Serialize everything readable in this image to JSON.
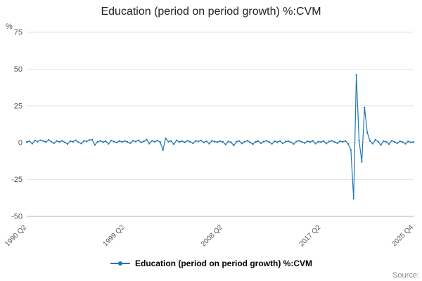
{
  "page": {
    "title": "Education (period on period growth) %:CVM",
    "y_unit_label": "%",
    "source_label": "Source:"
  },
  "legend": {
    "label": "Education (period on period growth) %:CVM",
    "line_color": "#1f77b4"
  },
  "chart_data": {
    "type": "line",
    "title": "Education (period on period growth) %:CVM",
    "xlabel": "",
    "ylabel": "%",
    "ylim": [
      -50,
      75
    ],
    "y_ticks": [
      75,
      50,
      25,
      0,
      -25,
      -50
    ],
    "grid": "horizontal",
    "legend_position": "bottom",
    "frequency": "quarterly",
    "start": "1990 Q2",
    "end": "2025 Q4",
    "x_tick_labels": [
      "1990 Q2",
      "1999 Q2",
      "2008 Q2",
      "2017 Q2",
      "2025 Q4"
    ],
    "x_tick_indices": [
      0,
      36,
      72,
      108,
      142
    ],
    "series": [
      {
        "name": "Education (period on period growth) %:CVM",
        "color": "#1f77b4",
        "values": [
          0.4,
          1.1,
          -0.6,
          1.5,
          0.8,
          1.7,
          1.2,
          0.5,
          1.9,
          0.8,
          -0.4,
          1.2,
          0.6,
          1.4,
          0.2,
          -0.8,
          1.1,
          0.7,
          1.6,
          0.3,
          -0.5,
          1.2,
          0.9,
          1.8,
          2.1,
          -1.5,
          0.6,
          1.3,
          0.4,
          1.0,
          -0.7,
          1.5,
          0.8,
          0.2,
          1.1,
          0.6,
          1.2,
          0.5,
          -0.3,
          1.4,
          0.8,
          1.6,
          0.2,
          1.0,
          2.2,
          -0.6,
          1.3,
          0.7,
          1.5,
          0.4,
          -5.0,
          3.0,
          0.8,
          1.2,
          -0.9,
          1.6,
          0.5,
          1.1,
          0.3,
          1.4,
          0.7,
          -0.4,
          1.2,
          0.9,
          1.5,
          0.2,
          1.0,
          -0.6,
          1.3,
          0.8,
          0.4,
          1.1,
          0.6,
          -1.2,
          0.9,
          0.3,
          -1.8,
          0.7,
          1.2,
          -0.5,
          0.8,
          1.4,
          0.2,
          -0.9,
          0.6,
          1.1,
          -0.3,
          0.8,
          1.3,
          0.5,
          -0.7,
          1.0,
          0.4,
          1.2,
          -0.4,
          0.7,
          1.1,
          0.3,
          -0.8,
          0.9,
          1.4,
          0.6,
          -0.2,
          1.0,
          0.5,
          1.3,
          -0.6,
          0.8,
          0.4,
          1.1,
          -0.5,
          0.9,
          1.3,
          0.6,
          -0.3,
          1.0,
          0.7,
          1.2,
          -0.8,
          -5.0,
          -38.0,
          46.0,
          1.5,
          -13.0,
          24.0,
          7.0,
          1.2,
          -0.6,
          2.0,
          0.8,
          -1.5,
          1.1,
          0.5,
          -0.9,
          1.4,
          0.6,
          -0.3,
          1.0,
          0.4,
          -0.7,
          0.9,
          0.3,
          0.5
        ]
      }
    ]
  }
}
